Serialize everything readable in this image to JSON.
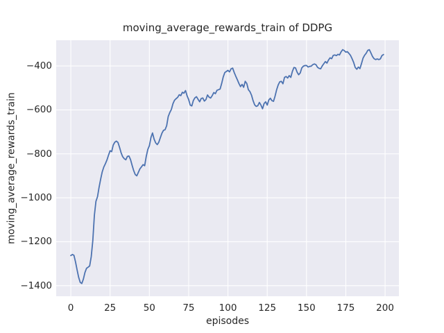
{
  "colors": {
    "figure_bg": "#ffffff",
    "plot_bg": "#eaeaf2",
    "grid": "#ffffff",
    "line": "#4c72b0",
    "text": "#262626"
  },
  "chart_data": {
    "type": "line",
    "title": "moving_average_rewards_train of DDPG",
    "xlabel": "episodes",
    "ylabel": "moving_average_rewards_train",
    "legend": "none",
    "grid": true,
    "xlim": [
      -9.3,
      208.8
    ],
    "ylim": [
      -1448,
      -283
    ],
    "x_ticks": [
      {
        "value": 0,
        "label": "0"
      },
      {
        "value": 25,
        "label": "25"
      },
      {
        "value": 50,
        "label": "50"
      },
      {
        "value": 75,
        "label": "75"
      },
      {
        "value": 100,
        "label": "100"
      },
      {
        "value": 125,
        "label": "125"
      },
      {
        "value": 150,
        "label": "150"
      },
      {
        "value": 175,
        "label": "175"
      },
      {
        "value": 200,
        "label": "200"
      }
    ],
    "y_ticks": [
      {
        "value": -400,
        "label": "−400"
      },
      {
        "value": -600,
        "label": "−600"
      },
      {
        "value": -800,
        "label": "−800"
      },
      {
        "value": -1000,
        "label": "−1000"
      },
      {
        "value": -1200,
        "label": "−1200"
      },
      {
        "value": -1400,
        "label": "−1400"
      }
    ],
    "series": [
      {
        "name": "moving_average_rewards_train",
        "x_start": 0,
        "x_step": 1,
        "values": [
          -1263,
          -1258,
          -1262,
          -1292,
          -1328,
          -1362,
          -1385,
          -1390,
          -1370,
          -1340,
          -1321,
          -1316,
          -1310,
          -1268,
          -1195,
          -1080,
          -1016,
          -995,
          -952,
          -915,
          -882,
          -860,
          -845,
          -828,
          -806,
          -786,
          -790,
          -760,
          -747,
          -742,
          -748,
          -770,
          -795,
          -813,
          -822,
          -827,
          -812,
          -810,
          -826,
          -852,
          -876,
          -894,
          -900,
          -884,
          -868,
          -859,
          -849,
          -854,
          -812,
          -780,
          -763,
          -726,
          -705,
          -733,
          -750,
          -758,
          -747,
          -726,
          -706,
          -693,
          -690,
          -672,
          -630,
          -612,
          -598,
          -572,
          -556,
          -549,
          -543,
          -531,
          -535,
          -520,
          -524,
          -512,
          -536,
          -553,
          -578,
          -582,
          -557,
          -545,
          -540,
          -552,
          -563,
          -548,
          -546,
          -560,
          -553,
          -532,
          -542,
          -546,
          -535,
          -521,
          -526,
          -511,
          -508,
          -505,
          -480,
          -450,
          -430,
          -425,
          -420,
          -427,
          -413,
          -410,
          -430,
          -447,
          -463,
          -480,
          -494,
          -484,
          -497,
          -470,
          -480,
          -508,
          -517,
          -533,
          -558,
          -577,
          -584,
          -581,
          -566,
          -578,
          -595,
          -571,
          -563,
          -578,
          -555,
          -547,
          -558,
          -561,
          -537,
          -508,
          -486,
          -472,
          -470,
          -481,
          -452,
          -448,
          -455,
          -444,
          -452,
          -425,
          -407,
          -409,
          -428,
          -440,
          -432,
          -409,
          -401,
          -398,
          -398,
          -405,
          -402,
          -401,
          -394,
          -391,
          -394,
          -406,
          -411,
          -413,
          -400,
          -390,
          -380,
          -387,
          -373,
          -363,
          -367,
          -352,
          -350,
          -353,
          -347,
          -350,
          -336,
          -326,
          -330,
          -337,
          -335,
          -343,
          -352,
          -367,
          -384,
          -407,
          -415,
          -405,
          -412,
          -389,
          -364,
          -351,
          -342,
          -329,
          -326,
          -341,
          -357,
          -367,
          -371,
          -368,
          -371,
          -368,
          -353,
          -348
        ]
      }
    ]
  }
}
